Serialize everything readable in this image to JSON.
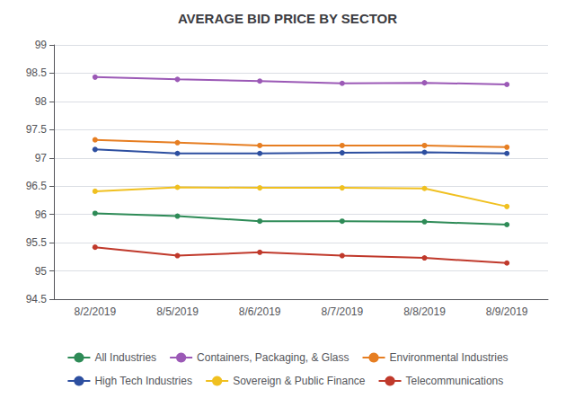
{
  "chart_data": {
    "type": "line",
    "title": "AVERAGE BID PRICE BY SECTOR",
    "categories": [
      "8/2/2019",
      "8/5/2019",
      "8/6/2019",
      "8/7/2019",
      "8/8/2019",
      "8/9/2019"
    ],
    "series": [
      {
        "name": "All Industries",
        "color": "#2e8b57",
        "values": [
          96.02,
          95.97,
          95.88,
          95.88,
          95.87,
          95.82
        ]
      },
      {
        "name": "Containers, Packaging, & Glass",
        "color": "#9b59b6",
        "values": [
          98.43,
          98.39,
          98.36,
          98.32,
          98.33,
          98.3
        ]
      },
      {
        "name": "Environmental Industries",
        "color": "#e67e22",
        "values": [
          97.32,
          97.27,
          97.22,
          97.22,
          97.22,
          97.19
        ]
      },
      {
        "name": "High Tech Industries",
        "color": "#2d4fa0",
        "values": [
          97.15,
          97.08,
          97.08,
          97.09,
          97.1,
          97.08
        ]
      },
      {
        "name": "Sovereign & Public Finance",
        "color": "#f0c020",
        "values": [
          96.41,
          96.48,
          96.47,
          96.47,
          96.46,
          96.14
        ]
      },
      {
        "name": "Telecommunications",
        "color": "#c0392b",
        "values": [
          95.42,
          95.27,
          95.33,
          95.27,
          95.23,
          95.14
        ]
      }
    ],
    "ylim": [
      94.5,
      99
    ],
    "yticks": [
      94.5,
      95,
      95.5,
      96,
      96.5,
      97,
      97.5,
      98,
      98.5,
      99
    ],
    "grid": true,
    "legend": "bottom",
    "marker": "circle"
  }
}
